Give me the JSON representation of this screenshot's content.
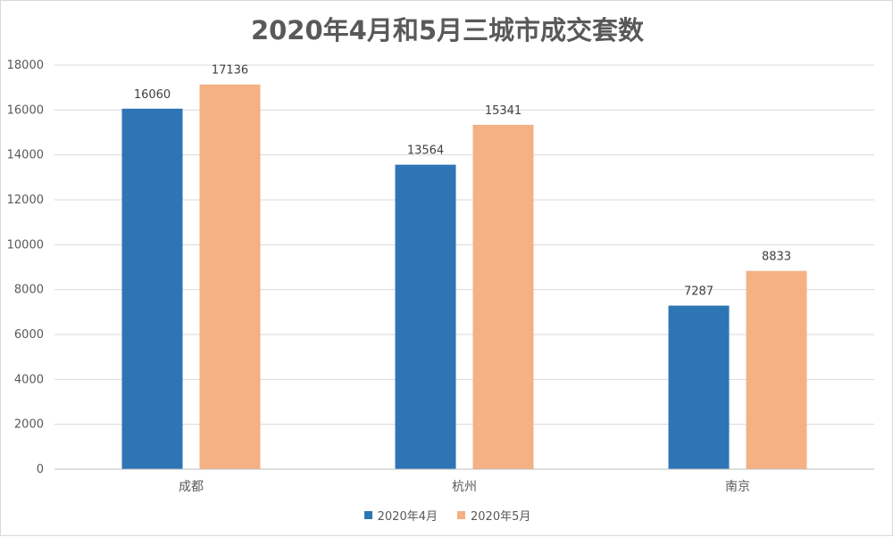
{
  "chart_data": {
    "type": "bar",
    "title": "2020年4月和5月三城市成交套数",
    "categories": [
      "成都",
      "杭州",
      "南京"
    ],
    "series": [
      {
        "name": "2020年4月",
        "values": [
          16060,
          13564,
          7287
        ],
        "color": "#2e75b6"
      },
      {
        "name": "2020年5月",
        "values": [
          17136,
          15341,
          8833
        ],
        "color": "#f4b183"
      }
    ],
    "ylim": [
      0,
      18000
    ],
    "yticks": [
      "0",
      "2000",
      "4000",
      "6000",
      "8000",
      "10000",
      "12000",
      "14000",
      "16000",
      "18000"
    ],
    "grid": true,
    "legend_position": "bottom"
  }
}
